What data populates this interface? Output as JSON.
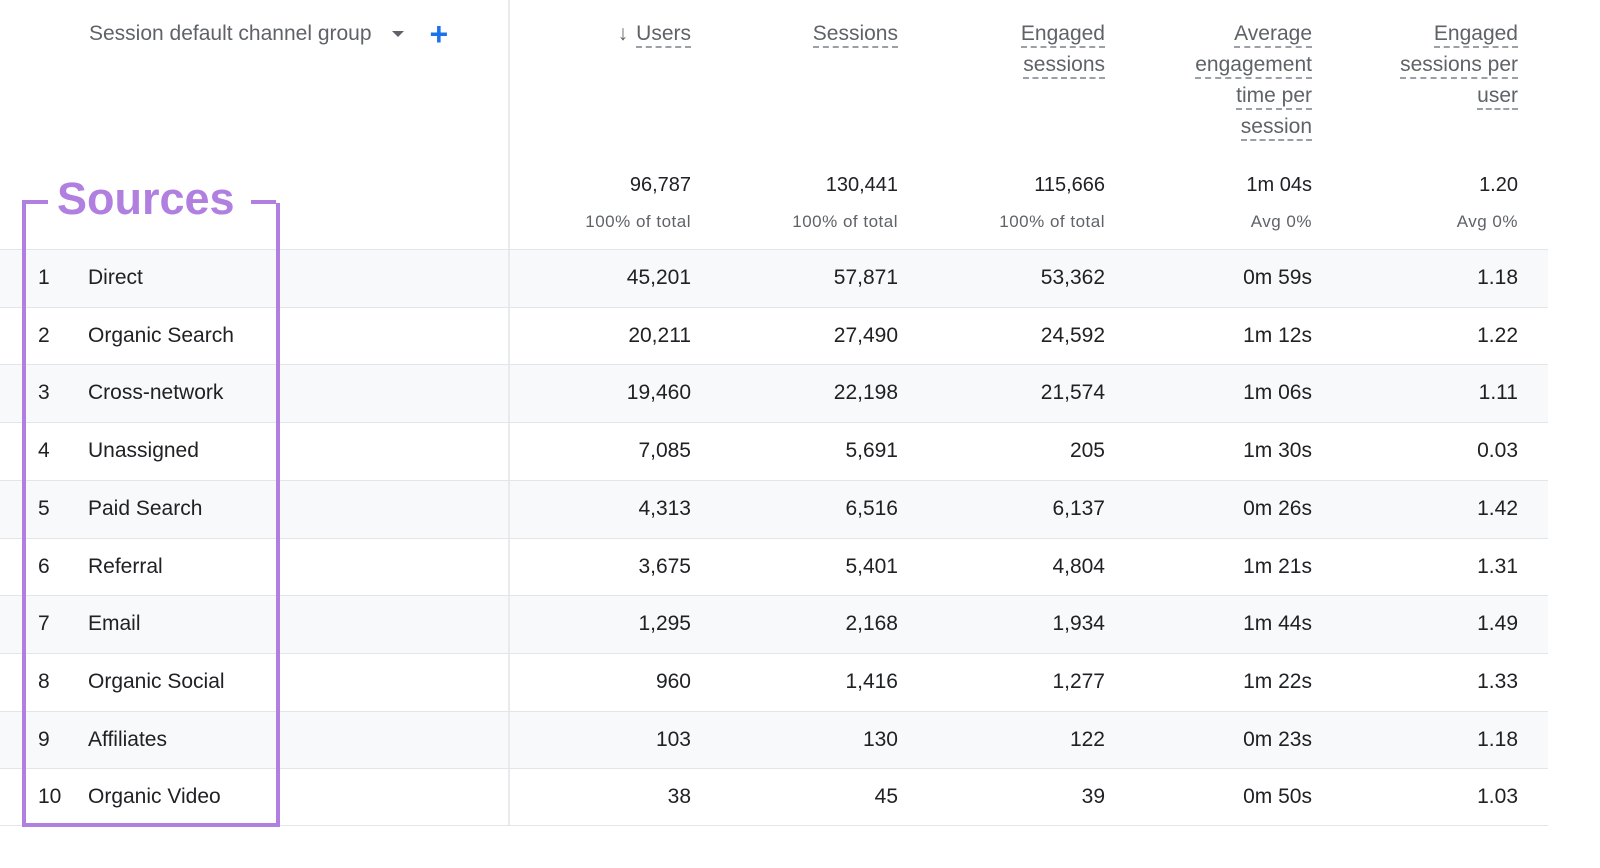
{
  "dimension": {
    "label": "Session default channel group",
    "add_label": "+"
  },
  "columns": [
    {
      "lines": [
        "Users"
      ],
      "sorted": true
    },
    {
      "lines": [
        "Sessions"
      ]
    },
    {
      "lines": [
        "Engaged",
        "sessions"
      ]
    },
    {
      "lines": [
        "Average",
        "engagement",
        "time per",
        "session"
      ]
    },
    {
      "lines": [
        "Engaged",
        "sessions per",
        "user"
      ]
    }
  ],
  "totals": [
    {
      "value": "96,787",
      "sub": "100% of total"
    },
    {
      "value": "130,441",
      "sub": "100% of total"
    },
    {
      "value": "115,666",
      "sub": "100% of total"
    },
    {
      "value": "1m 04s",
      "sub": "Avg 0%"
    },
    {
      "value": "1.20",
      "sub": "Avg 0%"
    }
  ],
  "rows": [
    {
      "idx": "1",
      "name": "Direct",
      "values": [
        "45,201",
        "57,871",
        "53,362",
        "0m 59s",
        "1.18"
      ]
    },
    {
      "idx": "2",
      "name": "Organic Search",
      "values": [
        "20,211",
        "27,490",
        "24,592",
        "1m 12s",
        "1.22"
      ]
    },
    {
      "idx": "3",
      "name": "Cross-network",
      "values": [
        "19,460",
        "22,198",
        "21,574",
        "1m 06s",
        "1.11"
      ]
    },
    {
      "idx": "4",
      "name": "Unassigned",
      "values": [
        "7,085",
        "5,691",
        "205",
        "1m 30s",
        "0.03"
      ]
    },
    {
      "idx": "5",
      "name": "Paid Search",
      "values": [
        "4,313",
        "6,516",
        "6,137",
        "0m 26s",
        "1.42"
      ]
    },
    {
      "idx": "6",
      "name": "Referral",
      "values": [
        "3,675",
        "5,401",
        "4,804",
        "1m 21s",
        "1.31"
      ]
    },
    {
      "idx": "7",
      "name": "Email",
      "values": [
        "1,295",
        "2,168",
        "1,934",
        "1m 44s",
        "1.49"
      ]
    },
    {
      "idx": "8",
      "name": "Organic Social",
      "values": [
        "960",
        "1,416",
        "1,277",
        "1m 22s",
        "1.33"
      ]
    },
    {
      "idx": "9",
      "name": "Affiliates",
      "values": [
        "103",
        "130",
        "122",
        "0m 23s",
        "1.18"
      ]
    },
    {
      "idx": "10",
      "name": "Organic Video",
      "values": [
        "38",
        "45",
        "39",
        "0m 50s",
        "1.03"
      ]
    }
  ],
  "annotation": {
    "label": "Sources",
    "color": "#b07fe0"
  },
  "colors": {
    "accent": "#1a73e8",
    "row_stripe": "#f8f9fa"
  }
}
